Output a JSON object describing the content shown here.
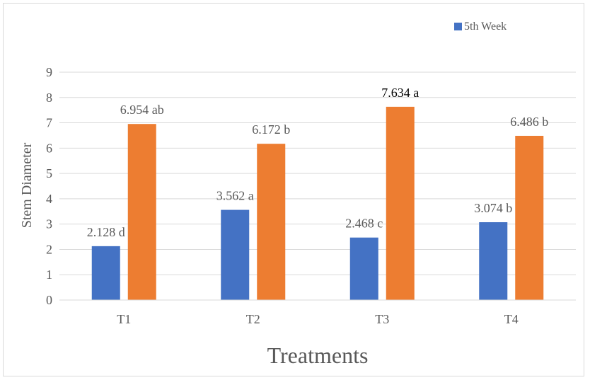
{
  "chart_data": {
    "type": "bar",
    "title": "",
    "xlabel": "Treatments",
    "ylabel": "Stem Diameter",
    "categories": [
      "T1",
      "T2",
      "T3",
      "T4"
    ],
    "ylim": [
      0,
      9
    ],
    "yticks": [
      "0",
      "1",
      "2",
      "3",
      "4",
      "5",
      "6",
      "7",
      "8",
      "9"
    ],
    "grid": true,
    "legend_position": "top-right",
    "series": [
      {
        "name": "5th Week",
        "color": "#4472C4",
        "values": [
          2.128,
          3.562,
          2.468,
          3.074
        ],
        "labels": [
          "2.128 d",
          "3.562 a",
          "2.468 c",
          "3.074 b"
        ]
      },
      {
        "color": "#ED7D31",
        "values": [
          6.954,
          6.172,
          7.634,
          6.486
        ],
        "labels": [
          "6.954 ab",
          "6.172 b",
          "7.634 a",
          "6.486 b"
        ]
      }
    ]
  }
}
